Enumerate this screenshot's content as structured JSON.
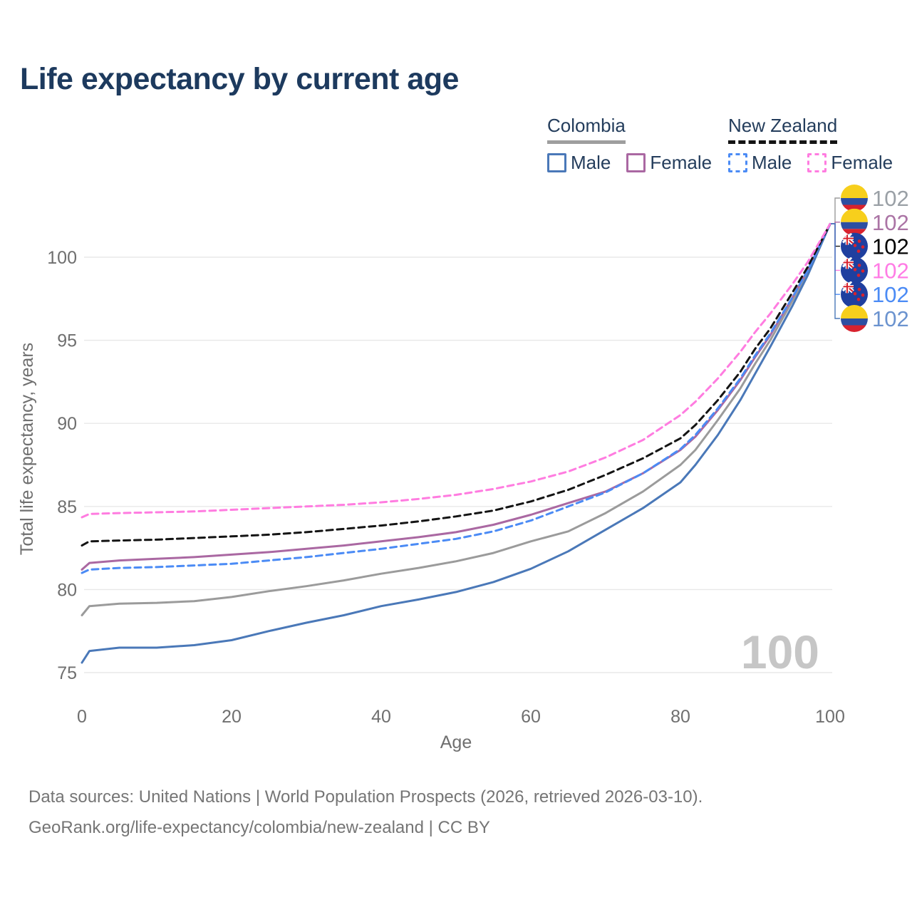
{
  "header": {
    "title": "Life expectancy by current age"
  },
  "legend": {
    "groups": [
      {
        "country": "Colombia",
        "line_style": "solid",
        "line_color": "#9e9e9e",
        "items": [
          {
            "label": "Male",
            "color": "#4a78b8",
            "style": "solid"
          },
          {
            "label": "Female",
            "color": "#aa68a2",
            "style": "solid"
          }
        ]
      },
      {
        "country": "New Zealand",
        "line_style": "dashed",
        "line_color": "#141414",
        "items": [
          {
            "label": "Male",
            "color": "#4b8bf5",
            "style": "dashed"
          },
          {
            "label": "Female",
            "color": "#ff7ce0",
            "style": "dashed"
          }
        ]
      }
    ]
  },
  "chart_data": {
    "type": "line",
    "title": "Life expectancy by current age",
    "xlabel": "Age",
    "ylabel": "Total life expectancy, years",
    "x_ticks": [
      0,
      20,
      40,
      60,
      80,
      100
    ],
    "y_ticks": [
      75,
      80,
      85,
      90,
      95,
      100
    ],
    "xlim": [
      0,
      100
    ],
    "ylim": [
      74,
      103
    ],
    "grid": "horizontal",
    "legend_position": "top-right",
    "age_ticker": "100",
    "ages": [
      0,
      1,
      5,
      10,
      15,
      20,
      25,
      30,
      35,
      40,
      45,
      50,
      55,
      60,
      65,
      70,
      75,
      80,
      82,
      85,
      88,
      90,
      92,
      95,
      97,
      100
    ],
    "series": [
      {
        "id": "colombia-both",
        "name": "Colombia Both sexes",
        "country": "Colombia",
        "country_id": "colombia",
        "sex": "both",
        "line": "solid",
        "color": "#9b9b9b",
        "values": [
          78.45,
          79,
          79.15,
          79.2,
          79.3,
          79.55,
          79.9,
          80.2,
          80.55,
          80.95,
          81.3,
          81.7,
          82.2,
          82.9,
          83.5,
          84.6,
          85.9,
          87.5,
          88.4,
          90.2,
          92.1,
          93.6,
          95,
          97.4,
          99.1,
          102
        ]
      },
      {
        "id": "colombia-female",
        "name": "Colombia Female",
        "country": "Colombia",
        "country_id": "colombia",
        "sex": "female",
        "line": "solid",
        "color": "#aa68a2",
        "values": [
          81.2,
          81.6,
          81.75,
          81.85,
          81.95,
          82.1,
          82.25,
          82.45,
          82.65,
          82.9,
          83.15,
          83.45,
          83.9,
          84.5,
          85.2,
          85.9,
          87,
          88.4,
          89.2,
          90.8,
          92.6,
          94,
          95.3,
          97.6,
          99.2,
          102
        ]
      },
      {
        "id": "colombia-male",
        "name": "Colombia Male",
        "country": "Colombia",
        "country_id": "colombia",
        "sex": "male",
        "line": "solid",
        "color": "#4a78b8",
        "values": [
          75.6,
          76.3,
          76.5,
          76.5,
          76.65,
          76.95,
          77.5,
          78,
          78.45,
          79,
          79.4,
          79.85,
          80.45,
          81.25,
          82.3,
          83.6,
          84.9,
          86.45,
          87.5,
          89.3,
          91.4,
          93,
          94.6,
          97.1,
          98.9,
          102
        ]
      },
      {
        "id": "new-zealand-male",
        "name": "New Zealand Male",
        "country": "New Zealand",
        "country_id": "new-zealand",
        "sex": "male",
        "line": "dashed",
        "color": "#4b8bf5",
        "values": [
          81,
          81.2,
          81.3,
          81.35,
          81.45,
          81.55,
          81.75,
          81.95,
          82.2,
          82.45,
          82.75,
          83.05,
          83.5,
          84.15,
          85,
          85.85,
          87,
          88.45,
          89.3,
          90.9,
          92.7,
          94.1,
          95.4,
          97.6,
          99.2,
          102
        ]
      },
      {
        "id": "new-zealand-both",
        "name": "New Zealand Both sexes",
        "country": "New Zealand",
        "country_id": "new-zealand",
        "sex": "both",
        "line": "dashed",
        "color": "#141414",
        "values": [
          82.65,
          82.9,
          82.95,
          83,
          83.1,
          83.2,
          83.3,
          83.45,
          83.65,
          83.85,
          84.1,
          84.4,
          84.75,
          85.3,
          86,
          86.9,
          87.9,
          89.1,
          89.9,
          91.4,
          93.1,
          94.5,
          95.7,
          97.9,
          99.4,
          102
        ]
      },
      {
        "id": "new-zealand-female",
        "name": "New Zealand Female",
        "country": "New Zealand",
        "country_id": "new-zealand",
        "sex": "female",
        "line": "dashed",
        "color": "#ff7ce0",
        "values": [
          84.35,
          84.55,
          84.6,
          84.65,
          84.7,
          84.8,
          84.9,
          85,
          85.1,
          85.25,
          85.45,
          85.7,
          86.05,
          86.5,
          87.1,
          87.95,
          89,
          90.5,
          91.3,
          92.7,
          94.3,
          95.5,
          96.6,
          98.4,
          99.7,
          102
        ]
      }
    ],
    "end_labels": [
      {
        "series_id": "colombia-both",
        "value": "102",
        "text_color": "#9aa0a6"
      },
      {
        "series_id": "colombia-female",
        "value": "102",
        "text_color": "#ab74a5"
      },
      {
        "series_id": "new-zealand-both",
        "value": "102",
        "text_color": "#000000"
      },
      {
        "series_id": "new-zealand-female",
        "value": "102",
        "text_color": "#ff7ce5"
      },
      {
        "series_id": "new-zealand-male",
        "value": "102",
        "text_color": "#4b8bf5"
      },
      {
        "series_id": "colombia-male",
        "value": "102",
        "text_color": "#6b93cf"
      }
    ],
    "flag_colors": {
      "colombia": {
        "yellow": "#f7cf1c",
        "blue": "#2d4fa2",
        "red": "#d8222e"
      },
      "new_zealand": {
        "blue": "#1f3f9f",
        "white": "#ffffff",
        "red": "#d8222e"
      }
    }
  },
  "footer": {
    "line1": "Data sources: United Nations | World Population Prospects (2026, retrieved 2026-03-10).",
    "line2": "GeoRank.org/life-expectancy/colombia/new-zealand | CC BY"
  }
}
